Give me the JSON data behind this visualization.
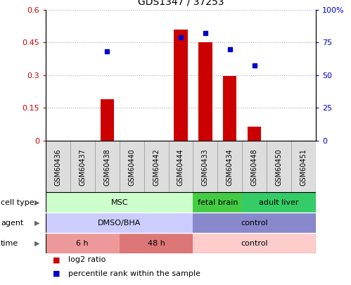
{
  "title": "GDS1347 / 37253",
  "samples": [
    "GSM60436",
    "GSM60437",
    "GSM60438",
    "GSM60440",
    "GSM60442",
    "GSM60444",
    "GSM60433",
    "GSM60434",
    "GSM60448",
    "GSM60450",
    "GSM60451"
  ],
  "log2_ratio": [
    0.0,
    0.0,
    0.19,
    0.0,
    0.0,
    0.51,
    0.45,
    0.295,
    0.065,
    0.0,
    0.0
  ],
  "percentile_rank": [
    null,
    null,
    0.68,
    null,
    null,
    0.79,
    0.82,
    0.7,
    0.575,
    null,
    null
  ],
  "ylim_left": [
    0,
    0.6
  ],
  "ylim_right": [
    0,
    100
  ],
  "yticks_left": [
    0,
    0.15,
    0.3,
    0.45,
    0.6
  ],
  "yticks_left_labels": [
    "0",
    "0.15",
    "0.3",
    "0.45",
    "0.6"
  ],
  "yticks_right": [
    0,
    25,
    50,
    75,
    100
  ],
  "yticks_right_labels": [
    "0",
    "25",
    "50",
    "75",
    "100%"
  ],
  "bar_color": "#cc0000",
  "dot_color": "#0000cc",
  "cell_type_row": {
    "label": "cell type",
    "segments": [
      {
        "text": "MSC",
        "start": 0,
        "end": 6,
        "color": "#ccffcc"
      },
      {
        "text": "fetal brain",
        "start": 6,
        "end": 8,
        "color": "#44cc44"
      },
      {
        "text": "adult liver",
        "start": 8,
        "end": 11,
        "color": "#33cc66"
      }
    ]
  },
  "agent_row": {
    "label": "agent",
    "segments": [
      {
        "text": "DMSO/BHA",
        "start": 0,
        "end": 6,
        "color": "#ccccff"
      },
      {
        "text": "control",
        "start": 6,
        "end": 11,
        "color": "#8888cc"
      }
    ]
  },
  "time_row": {
    "label": "time",
    "segments": [
      {
        "text": "6 h",
        "start": 0,
        "end": 3,
        "color": "#ee9999"
      },
      {
        "text": "48 h",
        "start": 3,
        "end": 6,
        "color": "#dd7777"
      },
      {
        "text": "control",
        "start": 6,
        "end": 11,
        "color": "#ffcccc"
      }
    ]
  },
  "legend_items": [
    {
      "label": "log2 ratio",
      "color": "#cc0000"
    },
    {
      "label": "percentile rank within the sample",
      "color": "#0000cc"
    }
  ],
  "tick_label_color_left": "#cc0000",
  "tick_label_color_right": "#0000cc",
  "bar_color_hex": "#cc0000",
  "dot_color_hex": "#0000cc",
  "sample_box_color": "#dddddd",
  "grid_color": "#aaaaaa"
}
